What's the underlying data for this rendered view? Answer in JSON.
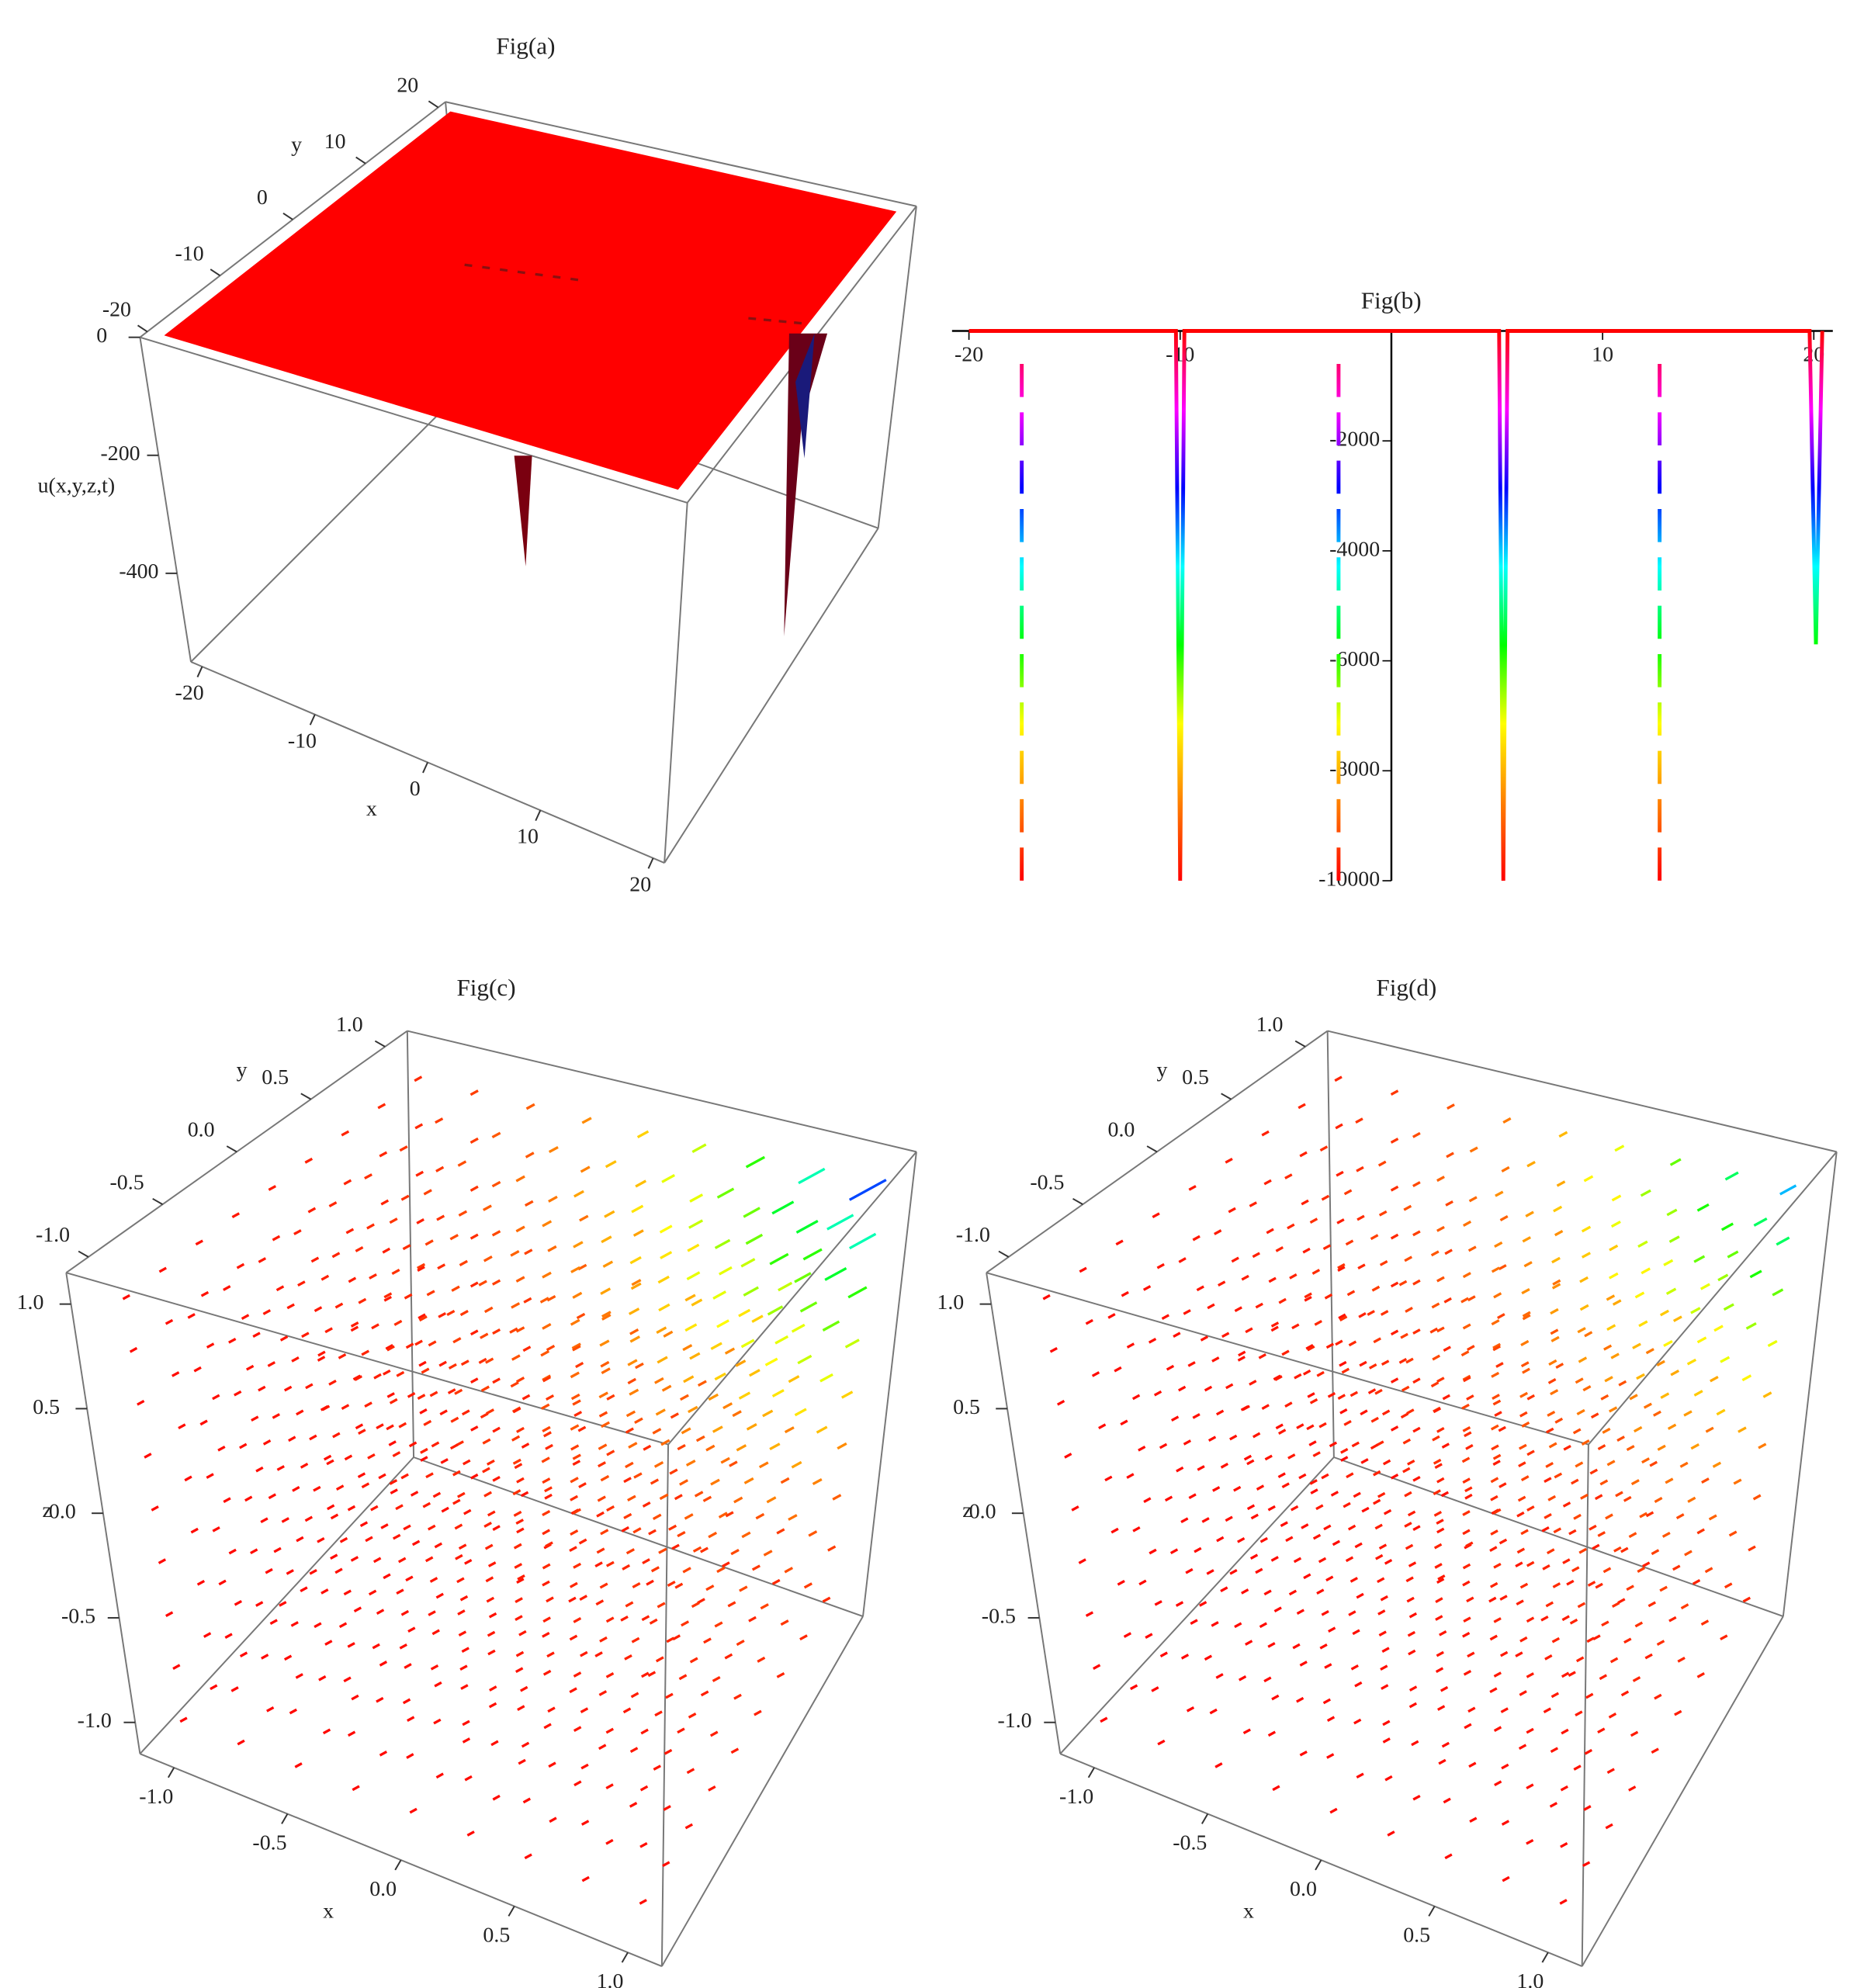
{
  "chart_data": [
    {
      "type": "surface3d",
      "title": "Fig(a)",
      "xlabel": "x",
      "ylabel": "y",
      "zlabel": "u(x,y,z,t)",
      "xlim": [
        -21,
        21
      ],
      "ylim": [
        -21,
        21
      ],
      "zlim": [
        -550,
        0
      ],
      "xticks": [
        -20,
        -10,
        0,
        10,
        20
      ],
      "yticks": [
        -20,
        -10,
        0,
        10,
        20
      ],
      "zticks": [
        0,
        -200,
        -400
      ],
      "color": "#ff0000"
    },
    {
      "type": "line",
      "title": "Fig(b)",
      "x": [
        -20,
        -17.5,
        -17.5,
        -10.2,
        -10,
        -9.8,
        -2.5,
        -2.5,
        5.1,
        5.3,
        5.5,
        12.7,
        12.7,
        19.8,
        20.1,
        20.4
      ],
      "series": [
        {
          "color": "#ff0000",
          "values": [
            0,
            0,
            0,
            0,
            -10000,
            0,
            0,
            0,
            0,
            -10000,
            0,
            0,
            0,
            0,
            -5700,
            0
          ]
        },
        {
          "color": "#ff0000",
          "dash": true,
          "values": [
            null,
            -600,
            -10000,
            null,
            null,
            null,
            -600,
            -10000,
            null,
            null,
            null,
            -600,
            -10000,
            null,
            null,
            null
          ]
        }
      ],
      "colormap": [
        "#ff0000",
        "#ff00ff",
        "#0000ff",
        "#00ffff",
        "#00ff00",
        "#ffff00",
        "#ff8000",
        "#ff0000"
      ],
      "xlim": [
        -20.8,
        20.9
      ],
      "ylim": [
        -10000,
        0
      ],
      "xticks": [
        -20,
        -10,
        10,
        20
      ],
      "yticks": [
        -2000,
        -4000,
        -6000,
        -8000,
        -10000
      ]
    },
    {
      "type": "vector3d",
      "title": "Fig(c)",
      "xlabel": "x",
      "ylabel": "y",
      "zlabel": "z",
      "xlim": [
        -1.15,
        1.15
      ],
      "ylim": [
        -1.15,
        1.15
      ],
      "zlim": [
        -1.15,
        1.15
      ],
      "xticks": [
        {
          "value": -1,
          "label": "-1.0"
        },
        {
          "value": -0.5,
          "label": "-0.5"
        },
        {
          "value": 0,
          "label": "0.0"
        },
        {
          "value": 0.5,
          "label": "0.5"
        },
        {
          "value": 1,
          "label": "1.0"
        }
      ],
      "yticks": [
        {
          "value": -1,
          "label": "-1.0"
        },
        {
          "value": -0.5,
          "label": "-0.5"
        },
        {
          "value": 0,
          "label": "0.0"
        },
        {
          "value": 0.5,
          "label": "0.5"
        },
        {
          "value": 1,
          "label": "1.0"
        }
      ],
      "zticks": [
        {
          "value": -1,
          "label": "-1.0"
        },
        {
          "value": -0.5,
          "label": "-0.5"
        },
        {
          "value": 0,
          "label": "0.0"
        },
        {
          "value": 0.5,
          "label": "0.5"
        },
        {
          "value": 1,
          "label": "1.0"
        }
      ]
    },
    {
      "type": "vector3d",
      "title": "Fig(d)",
      "xlabel": "x",
      "ylabel": "y",
      "zlabel": "z",
      "xlim": [
        -1.15,
        1.15
      ],
      "ylim": [
        -1.15,
        1.15
      ],
      "zlim": [
        -1.15,
        1.15
      ],
      "xticks": [
        {
          "value": -1,
          "label": "-1.0"
        },
        {
          "value": -0.5,
          "label": "-0.5"
        },
        {
          "value": 0,
          "label": "0.0"
        },
        {
          "value": 0.5,
          "label": "0.5"
        },
        {
          "value": 1,
          "label": "1.0"
        }
      ],
      "yticks": [
        {
          "value": -1,
          "label": "-1.0"
        },
        {
          "value": -0.5,
          "label": "-0.5"
        },
        {
          "value": 0,
          "label": "0.0"
        },
        {
          "value": 0.5,
          "label": "0.5"
        },
        {
          "value": 1,
          "label": "1.0"
        }
      ],
      "zticks": [
        {
          "value": -1,
          "label": "-1.0"
        },
        {
          "value": -0.5,
          "label": "-0.5"
        },
        {
          "value": 0,
          "label": "0.0"
        },
        {
          "value": 0.5,
          "label": "0.5"
        },
        {
          "value": 1,
          "label": "1.0"
        }
      ]
    }
  ]
}
